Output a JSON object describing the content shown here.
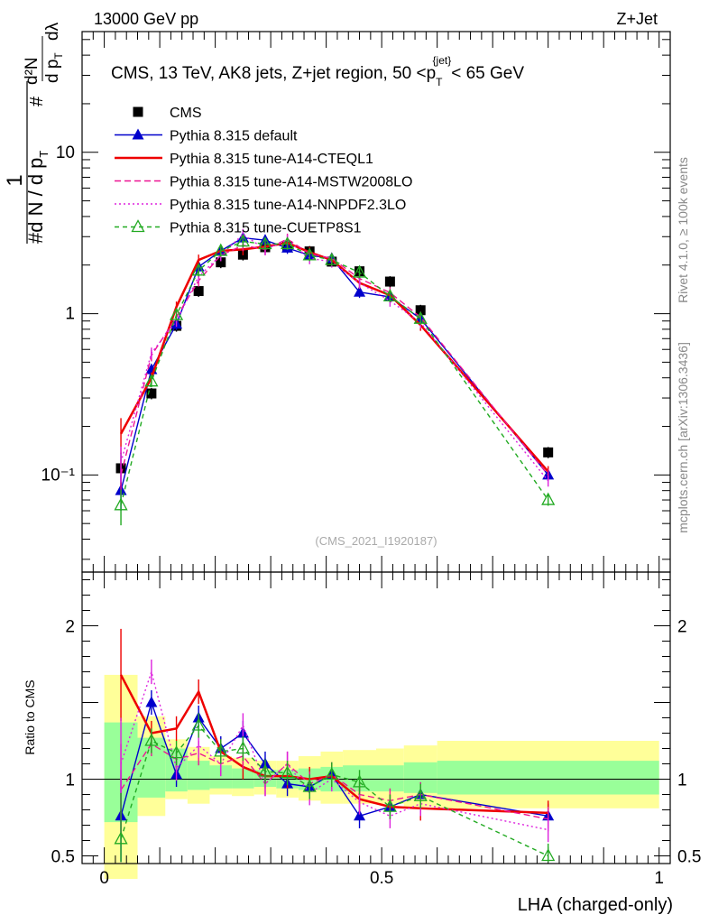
{
  "header": {
    "energy": "13000 GeV pp",
    "process": "Z+Jet"
  },
  "side_text": {
    "rivet": "Rivet 4.1.0, ≥ 100k events",
    "mcplots": "mcplots.cern.ch [arXiv:1306.3436]"
  },
  "analysis_id": "(CMS_2021_I1920187)",
  "chart_data": [
    {
      "type": "line",
      "panel": "main",
      "title_parts": {
        "prefix": "CMS, 13 TeV, AK8 jets, Z+jet region, 50 <p",
        "sub": "T",
        "sup": "{jet}",
        "suffix": "< 65 GeV"
      },
      "ylabel_parts": {
        "frac": "1",
        "prefix": "#",
        "middle": "d N / d p",
        "sub": "T",
        "num": "d²N",
        "den": "d p",
        "lambda": "dλ"
      },
      "yscale": "log",
      "ylim": [
        0.025,
        56
      ],
      "xlim": [
        -0.04,
        1.02
      ],
      "y_ticks": [
        {
          "value": 0.1,
          "label": "10⁻¹"
        },
        {
          "value": 1,
          "label": "1"
        },
        {
          "value": 10,
          "label": "10"
        }
      ],
      "x": [
        0.03,
        0.085,
        0.13,
        0.17,
        0.21,
        0.25,
        0.29,
        0.33,
        0.37,
        0.41,
        0.46,
        0.515,
        0.57,
        0.8
      ],
      "series": [
        {
          "name": "CMS",
          "color": "#000000",
          "style": "marker-square",
          "values": [
            0.11,
            0.32,
            0.84,
            1.38,
            2.08,
            2.32,
            2.58,
            2.62,
            2.43,
            2.1,
            1.83,
            1.58,
            1.05,
            0.138
          ]
        },
        {
          "name": "Pythia 8.315 default",
          "color": "#0000cc",
          "style": "solid-triangle",
          "values": [
            0.08,
            0.45,
            0.86,
            1.95,
            2.45,
            2.95,
            2.85,
            2.55,
            2.3,
            2.2,
            1.36,
            1.27,
            0.93,
            0.1
          ]
        },
        {
          "name": "Pythia 8.315 tune-A14-CTEQL1",
          "color": "#ee0000",
          "style": "thick-solid",
          "values": [
            0.18,
            0.4,
            1.1,
            2.15,
            2.45,
            2.5,
            2.6,
            2.75,
            2.4,
            2.15,
            1.55,
            1.3,
            0.85,
            0.105
          ]
        },
        {
          "name": "Pythia 8.315 tune-A14-MSTW2008LO",
          "color": "#ee1493",
          "style": "dashed",
          "values": [
            0.1,
            0.55,
            0.95,
            1.6,
            2.3,
            2.65,
            2.5,
            2.9,
            2.35,
            2.2,
            1.65,
            1.35,
            0.95,
            0.1
          ]
        },
        {
          "name": "Pythia 8.315 tune-A14-NNPDF2.3LO",
          "color": "#dd22dd",
          "style": "dotted",
          "values": [
            0.12,
            0.57,
            0.9,
            1.7,
            2.3,
            3.1,
            2.5,
            2.85,
            2.2,
            2.1,
            1.55,
            1.2,
            0.88,
            0.092
          ]
        },
        {
          "name": "Pythia 8.315 tune-CUETP8S1",
          "color": "#22aa22",
          "style": "dashed-open-triangle",
          "values": [
            0.065,
            0.38,
            0.98,
            1.85,
            2.45,
            2.8,
            2.7,
            2.7,
            2.3,
            2.15,
            1.8,
            1.28,
            0.93,
            0.07
          ]
        }
      ]
    },
    {
      "type": "line",
      "panel": "ratio",
      "ylabel": "Ratio to CMS",
      "xlabel": "LHA (charged-only)",
      "ylim": [
        0.45,
        2.35
      ],
      "y_ticks": [
        {
          "value": 0.5,
          "label": "0.5"
        },
        {
          "value": 1,
          "label": "1"
        },
        {
          "value": 2,
          "label": "2"
        }
      ],
      "x_ticks": [
        {
          "value": 0,
          "label": "0"
        },
        {
          "value": 0.5,
          "label": "0.5"
        },
        {
          "value": 1,
          "label": "1"
        }
      ],
      "x": [
        0.03,
        0.085,
        0.13,
        0.17,
        0.21,
        0.25,
        0.29,
        0.33,
        0.37,
        0.41,
        0.46,
        0.515,
        0.57,
        0.8
      ],
      "uncertainty_bins": [
        {
          "x_low": 0.0,
          "x_high": 0.06,
          "inner": [
            0.72,
            1.37
          ],
          "outer": [
            0.35,
            1.68
          ]
        },
        {
          "x_low": 0.06,
          "x_high": 0.11,
          "inner": [
            0.88,
            1.27
          ],
          "outer": [
            0.76,
            1.41
          ]
        },
        {
          "x_low": 0.11,
          "x_high": 0.15,
          "inner": [
            0.92,
            1.2
          ],
          "outer": [
            0.87,
            1.26
          ]
        },
        {
          "x_low": 0.15,
          "x_high": 0.19,
          "inner": [
            0.93,
            1.12
          ],
          "outer": [
            0.84,
            1.21
          ]
        },
        {
          "x_low": 0.19,
          "x_high": 0.23,
          "inner": [
            0.94,
            1.09
          ],
          "outer": [
            0.9,
            1.15
          ]
        },
        {
          "x_low": 0.23,
          "x_high": 0.27,
          "inner": [
            0.94,
            1.07
          ],
          "outer": [
            0.89,
            1.14
          ]
        },
        {
          "x_low": 0.27,
          "x_high": 0.31,
          "inner": [
            0.95,
            1.06
          ],
          "outer": [
            0.9,
            1.12
          ]
        },
        {
          "x_low": 0.31,
          "x_high": 0.35,
          "inner": [
            0.94,
            1.06
          ],
          "outer": [
            0.88,
            1.12
          ]
        },
        {
          "x_low": 0.35,
          "x_high": 0.39,
          "inner": [
            0.93,
            1.07
          ],
          "outer": [
            0.86,
            1.15
          ]
        },
        {
          "x_low": 0.39,
          "x_high": 0.43,
          "inner": [
            0.92,
            1.08
          ],
          "outer": [
            0.84,
            1.18
          ]
        },
        {
          "x_low": 0.43,
          "x_high": 0.49,
          "inner": [
            0.92,
            1.09
          ],
          "outer": [
            0.84,
            1.19
          ]
        },
        {
          "x_low": 0.49,
          "x_high": 0.54,
          "inner": [
            0.92,
            1.09
          ],
          "outer": [
            0.84,
            1.2
          ]
        },
        {
          "x_low": 0.54,
          "x_high": 0.6,
          "inner": [
            0.91,
            1.11
          ],
          "outer": [
            0.82,
            1.22
          ]
        },
        {
          "x_low": 0.6,
          "x_high": 1.0,
          "inner": [
            0.9,
            1.12
          ],
          "outer": [
            0.81,
            1.25
          ]
        }
      ],
      "series": [
        {
          "name": "Pythia 8.315 default",
          "color": "#0000cc",
          "style": "solid-triangle",
          "values": [
            0.76,
            1.5,
            1.03,
            1.4,
            1.2,
            1.3,
            1.1,
            0.97,
            0.95,
            1.03,
            0.76,
            0.82,
            0.9,
            0.76
          ]
        },
        {
          "name": "Pythia 8.315 tune-A14-CTEQL1",
          "color": "#ee0000",
          "style": "thick-solid",
          "values": [
            1.68,
            1.3,
            1.33,
            1.57,
            1.18,
            1.08,
            1.02,
            1.02,
            1.0,
            1.02,
            0.87,
            0.82,
            0.81,
            0.78
          ]
        },
        {
          "name": "Pythia 8.315 tune-A14-MSTW2008LO",
          "color": "#ee1493",
          "style": "dashed",
          "values": [
            0.93,
            1.23,
            1.13,
            1.17,
            1.1,
            1.15,
            0.97,
            1.1,
            0.97,
            1.03,
            0.9,
            0.86,
            0.9,
            0.74
          ]
        },
        {
          "name": "Pythia 8.315 tune-A14-NNPDF2.3LO",
          "color": "#dd22dd",
          "style": "dotted",
          "values": [
            1.1,
            1.7,
            1.07,
            1.22,
            1.1,
            1.35,
            0.97,
            1.1,
            0.91,
            1.0,
            0.85,
            0.76,
            0.84,
            0.67
          ]
        },
        {
          "name": "Pythia 8.315 tune-CUETP8S1",
          "color": "#22aa22",
          "style": "dashed-open-triangle",
          "values": [
            0.61,
            1.25,
            1.17,
            1.35,
            1.18,
            1.2,
            1.05,
            1.04,
            0.95,
            1.03,
            0.98,
            0.82,
            0.89,
            0.5
          ]
        }
      ]
    }
  ]
}
